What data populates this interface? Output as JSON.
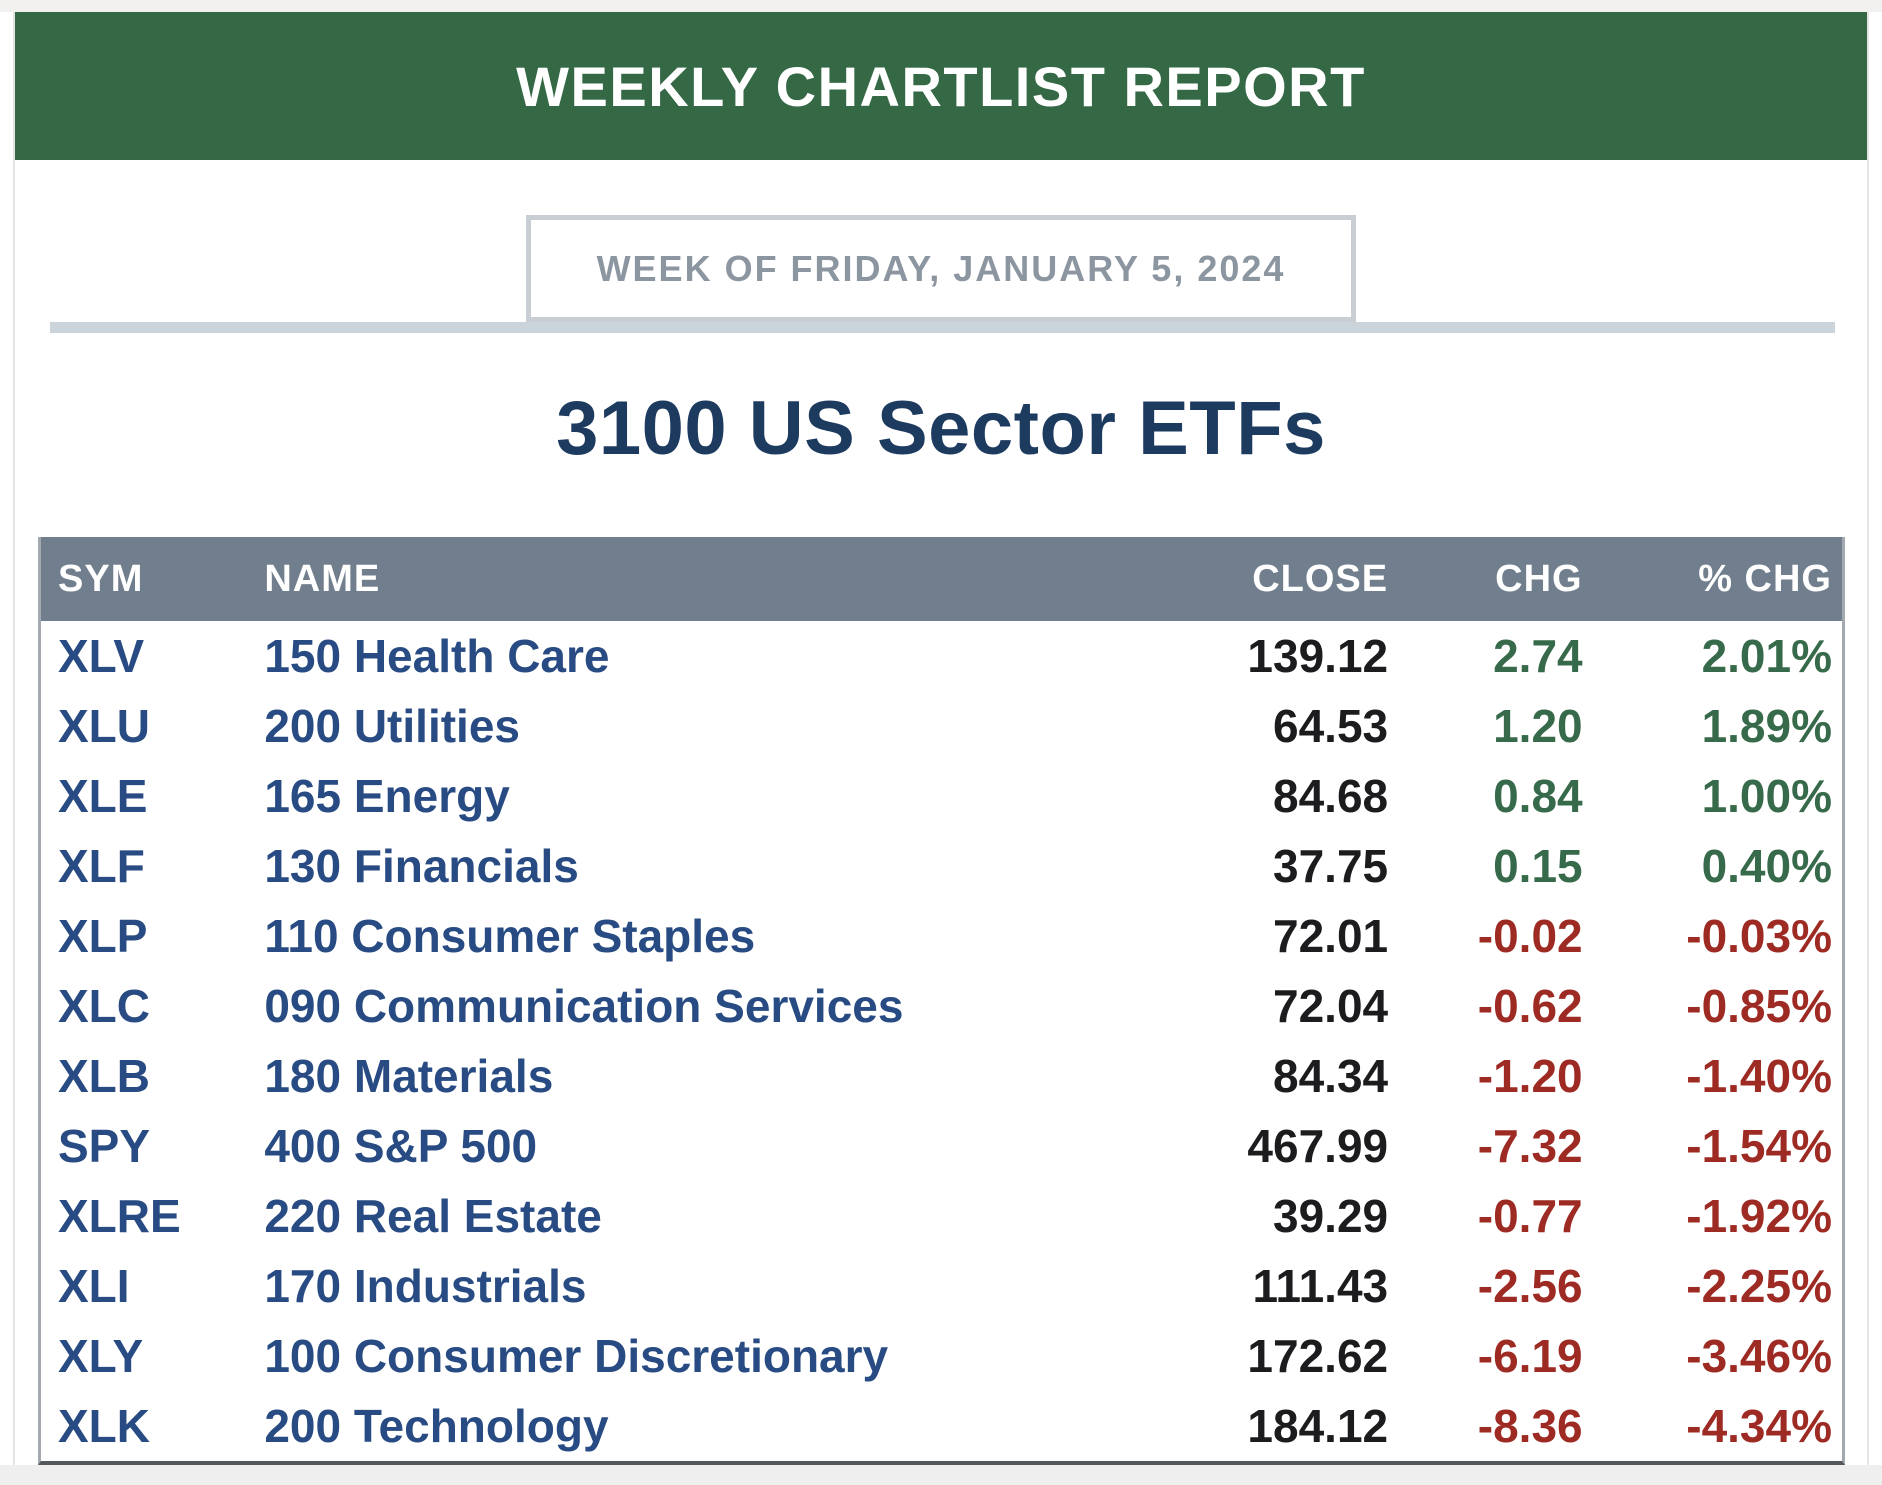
{
  "report": {
    "banner_title": "WEEKLY CHARTLIST REPORT",
    "week_label": "WEEK OF FRIDAY, JANUARY 5, 2024",
    "page_title": "3100 US Sector ETFs"
  },
  "colors": {
    "banner_green": "#356946",
    "header_slate": "#717E8D",
    "row_navy": "#274B82",
    "title_navy": "#1D3A5F",
    "close_black": "#1C1C1E",
    "positive_green": "#376A4A",
    "negative_red": "#9E2B23",
    "week_text": "#8C96A1",
    "week_border": "#C8CED4",
    "divider_gray": "#CBD3DB",
    "table_edge": "#A3A9AF",
    "table_bottom": "#54585D",
    "card_edge": "#E5E5E5"
  },
  "table": {
    "columns": [
      "SYM",
      "NAME",
      "CLOSE",
      "CHG",
      "% CHG"
    ],
    "rows": [
      {
        "sym": "XLV",
        "name": "150 Health Care",
        "close": "139.12",
        "chg": "2.74",
        "pct_chg": "2.01%",
        "direction": "up"
      },
      {
        "sym": "XLU",
        "name": "200 Utilities",
        "close": "64.53",
        "chg": "1.20",
        "pct_chg": "1.89%",
        "direction": "up"
      },
      {
        "sym": "XLE",
        "name": "165 Energy",
        "close": "84.68",
        "chg": "0.84",
        "pct_chg": "1.00%",
        "direction": "up"
      },
      {
        "sym": "XLF",
        "name": "130 Financials",
        "close": "37.75",
        "chg": "0.15",
        "pct_chg": "0.40%",
        "direction": "up"
      },
      {
        "sym": "XLP",
        "name": "110 Consumer Staples",
        "close": "72.01",
        "chg": "-0.02",
        "pct_chg": "-0.03%",
        "direction": "down"
      },
      {
        "sym": "XLC",
        "name": "090 Communication Services",
        "close": "72.04",
        "chg": "-0.62",
        "pct_chg": "-0.85%",
        "direction": "down"
      },
      {
        "sym": "XLB",
        "name": "180 Materials",
        "close": "84.34",
        "chg": "-1.20",
        "pct_chg": "-1.40%",
        "direction": "down"
      },
      {
        "sym": "SPY",
        "name": "400 S&P 500",
        "close": "467.99",
        "chg": "-7.32",
        "pct_chg": "-1.54%",
        "direction": "down"
      },
      {
        "sym": "XLRE",
        "name": "220 Real Estate",
        "close": "39.29",
        "chg": "-0.77",
        "pct_chg": "-1.92%",
        "direction": "down"
      },
      {
        "sym": "XLI",
        "name": "170 Industrials",
        "close": "111.43",
        "chg": "-2.56",
        "pct_chg": "-2.25%",
        "direction": "down"
      },
      {
        "sym": "XLY",
        "name": "100 Consumer Discretionary",
        "close": "172.62",
        "chg": "-6.19",
        "pct_chg": "-3.46%",
        "direction": "down"
      },
      {
        "sym": "XLK",
        "name": "200 Technology",
        "close": "184.12",
        "chg": "-8.36",
        "pct_chg": "-4.34%",
        "direction": "down"
      }
    ]
  }
}
